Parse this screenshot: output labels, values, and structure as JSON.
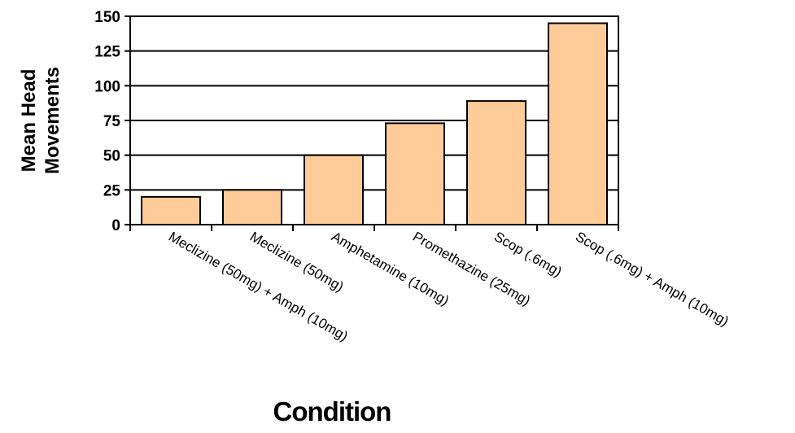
{
  "chart_data": {
    "type": "bar",
    "categories": [
      "Meclizine (50mg) + Amph (10mg)",
      "Meclizine (50mg)",
      "Amphetamine (10mg)",
      "Promethazine (25mg)",
      "Scop (.6mg)",
      "Scop (.6mg) + Amph (10mg)"
    ],
    "values": [
      20,
      25,
      50,
      73,
      89,
      145
    ],
    "title": "",
    "xlabel": "Condition",
    "ylabel": "Mean Head Movements",
    "ylabel_lines": [
      "Mean Head",
      "Movements"
    ],
    "ylim": [
      0,
      150
    ],
    "yticks": [
      0,
      25,
      50,
      75,
      100,
      125,
      150
    ],
    "grid": true,
    "legend": "none",
    "bar_color": "#FFCC99",
    "bar_edge_color": "#000000"
  }
}
